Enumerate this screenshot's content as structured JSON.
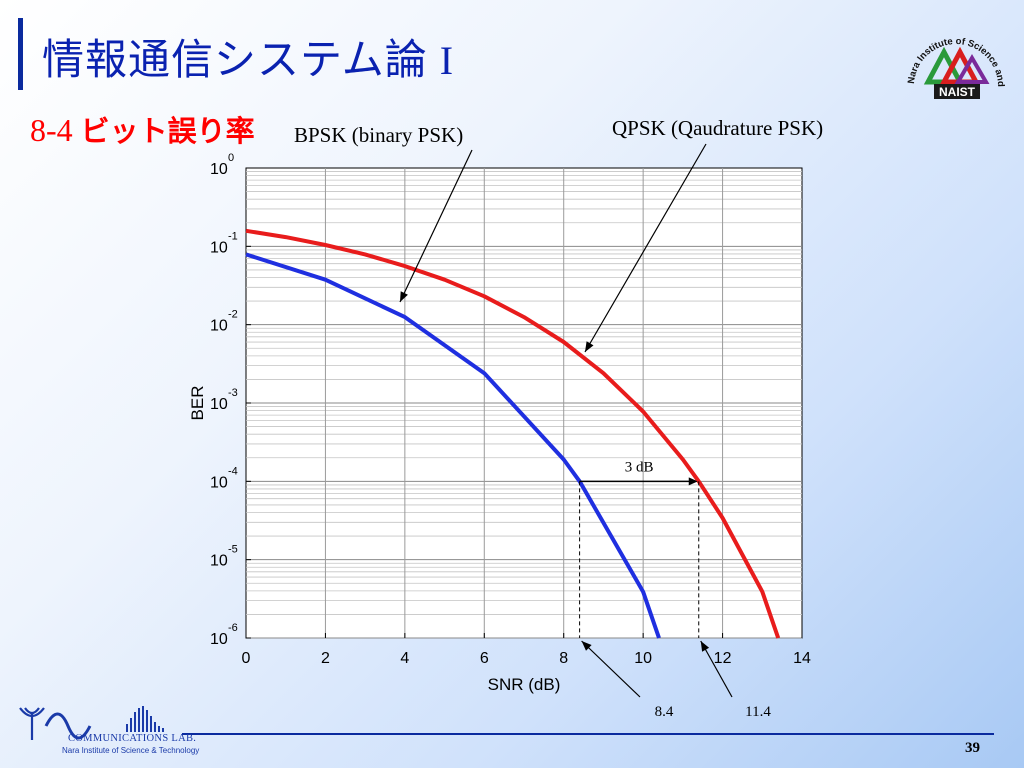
{
  "slide": {
    "title": "情報通信システム論",
    "title_roman": "I",
    "subtitle_num": "8-4",
    "subtitle_jp": "ビット誤り率",
    "page_number": "39"
  },
  "logo": {
    "naist_ring_text": "Nara Institute of Science and Technology",
    "naist_text": "NAIST"
  },
  "lab": {
    "name": "COMMUNICATIONS LAB.",
    "institute": "Nara Institute of Science & Technology"
  },
  "annotations": {
    "bpsk_label": "BPSK (binary PSK)",
    "qpsk_label": "QPSK (Qaudrature PSK)",
    "gap_label": "3 dB",
    "bpsk_marker": "8.4",
    "qpsk_marker": "11.4"
  },
  "colors": {
    "title": "#0a22b0",
    "subtitle": "#ff0000",
    "bpsk": "#1f2fe0",
    "qpsk": "#e81c1c"
  },
  "chart_data": {
    "type": "line",
    "xlabel": "SNR (dB)",
    "ylabel": "BER",
    "xlim": [
      0,
      14
    ],
    "ylim_exp": [
      -6,
      0
    ],
    "y_scale": "log",
    "grid": true,
    "x_ticks": [
      "0",
      "2",
      "4",
      "6",
      "8",
      "10",
      "12",
      "14"
    ],
    "y_tick_base": "10",
    "y_tick_exps": [
      "0",
      "-1",
      "-2",
      "-3",
      "-4",
      "-5",
      "-6"
    ],
    "series": [
      {
        "name": "BPSK (binary PSK)",
        "x": [
          0,
          2,
          4,
          6,
          8,
          8.4,
          10,
          10.4
        ],
        "y": [
          0.079,
          0.0375,
          0.0125,
          0.0024,
          0.00019,
          0.0001,
          3.9e-06,
          1e-06
        ]
      },
      {
        "name": "QPSK (Qaudrature PSK)",
        "x": [
          0,
          1,
          2,
          3,
          4,
          5,
          6,
          7,
          8,
          9,
          10,
          11,
          11.4,
          12,
          13,
          13.4
        ],
        "y": [
          0.158,
          0.131,
          0.104,
          0.079,
          0.056,
          0.0375,
          0.023,
          0.0125,
          0.006,
          0.0024,
          0.00078,
          0.00019,
          0.0001,
          3.4e-05,
          3.9e-06,
          1e-06
        ]
      }
    ]
  }
}
